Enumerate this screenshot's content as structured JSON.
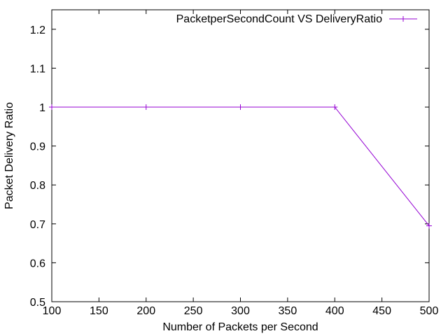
{
  "chart_data": {
    "type": "line",
    "title": "",
    "xlabel": "Number of Packets per Second",
    "ylabel": "Packet Delivery Ratio",
    "xlim": [
      100,
      500
    ],
    "ylim": [
      0.5,
      1.25
    ],
    "x_ticks": [
      100,
      150,
      200,
      250,
      300,
      350,
      400,
      450,
      500
    ],
    "y_ticks": [
      0.5,
      0.6,
      0.7,
      0.8,
      0.9,
      1,
      1.1,
      1.2
    ],
    "x_tick_labels": [
      "100",
      "150",
      "200",
      "250",
      "300",
      "350",
      "400",
      "450",
      "500"
    ],
    "y_tick_labels": [
      "0.5",
      "0.6",
      "0.7",
      "0.8",
      "0.9",
      "1",
      "1.1",
      "1.2"
    ],
    "grid": false,
    "legend_position": "top-right",
    "series": [
      {
        "name": "PacketperSecondCount VS DeliveryRatio",
        "color": "#9400d3",
        "x": [
          100,
          200,
          300,
          400,
          500
        ],
        "y": [
          1.0,
          1.0,
          1.0,
          1.0,
          0.695
        ]
      }
    ]
  }
}
